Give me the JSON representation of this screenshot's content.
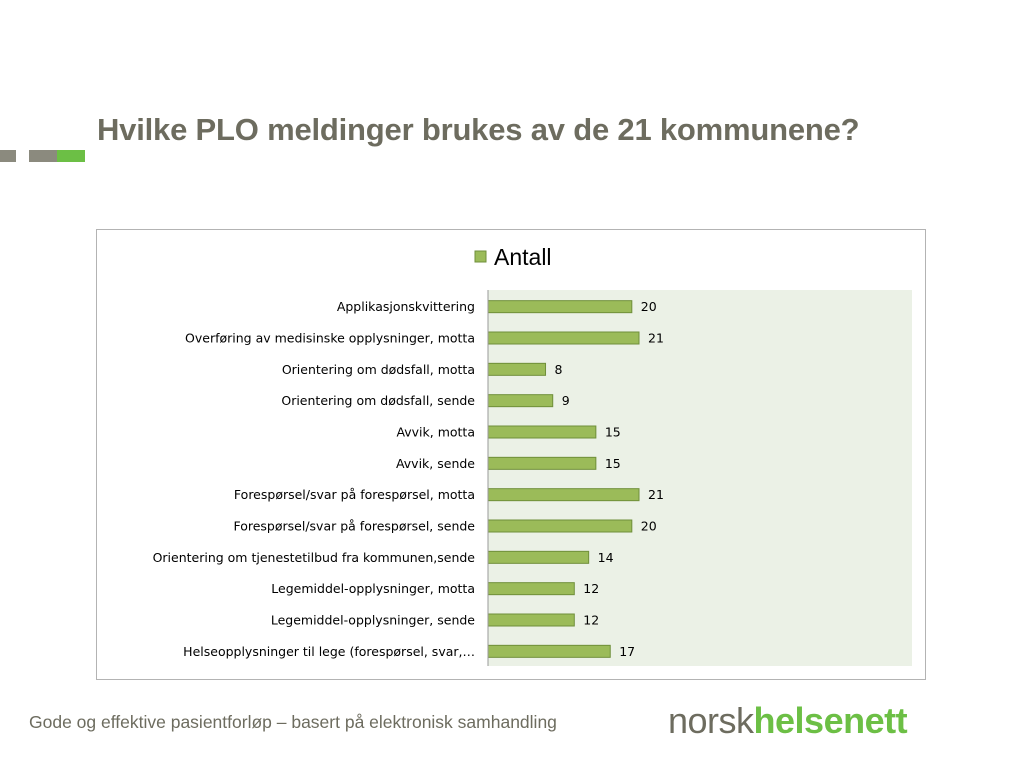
{
  "slide": {
    "title": "Hvilke PLO meldinger brukes av de 21 kommunene?",
    "footer": "Gode og effektive pasientforløp – basert på elektronisk samhandling",
    "logo": {
      "part1": "norsk",
      "part2": "helsenett"
    }
  },
  "colors": {
    "title": "#6d6c5f",
    "bar_fill": "#9bbb59",
    "bar_stroke": "#6f8f3a",
    "plot_bg": "#ebf1e6",
    "logo_green": "#6cbf45",
    "logo_gray": "#6d6c5f"
  },
  "chart_data": {
    "type": "bar",
    "orientation": "horizontal",
    "legend_position": "top",
    "grid": false,
    "xlim": [
      0,
      21
    ],
    "categories": [
      "Applikasjonskvittering",
      "Overføring av medisinske opplysninger, motta",
      "Orientering om dødsfall, motta",
      "Orientering om dødsfall, sende",
      "Avvik, motta",
      "Avvik, sende",
      "Forespørsel/svar på forespørsel, motta",
      "Forespørsel/svar på forespørsel, sende",
      "Orientering om tjenestetilbud fra kommunen,sende",
      "Legemiddel-opplysninger, motta",
      "Legemiddel-opplysninger, sende",
      "Helseopplysninger til lege (forespørsel, svar,…"
    ],
    "series": [
      {
        "name": "Antall",
        "values": [
          20,
          21,
          8,
          9,
          15,
          15,
          21,
          20,
          14,
          12,
          12,
          17
        ]
      }
    ]
  }
}
